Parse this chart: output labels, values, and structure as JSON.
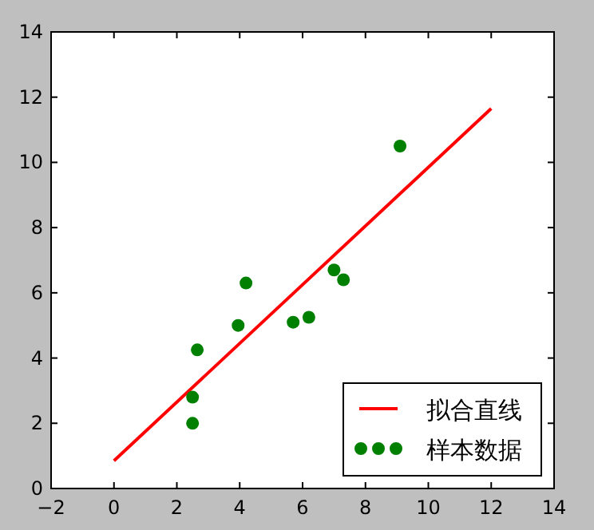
{
  "chart_data": {
    "type": "scatter",
    "xlim": [
      -2,
      14
    ],
    "ylim": [
      0,
      14
    ],
    "xticks": [
      -2,
      0,
      2,
      4,
      6,
      8,
      10,
      12,
      14
    ],
    "yticks": [
      0,
      2,
      4,
      6,
      8,
      10,
      12,
      14
    ],
    "grid": false,
    "legend": "bottom right",
    "series": [
      {
        "name": "拟合直线",
        "type": "line",
        "color": "#ff0000",
        "x": [
          0,
          12
        ],
        "values": [
          0.85,
          11.65
        ]
      },
      {
        "name": "样本数据",
        "marker": "circle",
        "color": "#008000",
        "x": [
          2.5,
          2.5,
          2.65,
          3.95,
          4.2,
          5.7,
          6.2,
          7.0,
          7.3,
          9.1
        ],
        "values": [
          2.0,
          2.8,
          4.25,
          5.0,
          6.3,
          5.1,
          5.25,
          6.7,
          6.4,
          10.5
        ]
      }
    ]
  }
}
